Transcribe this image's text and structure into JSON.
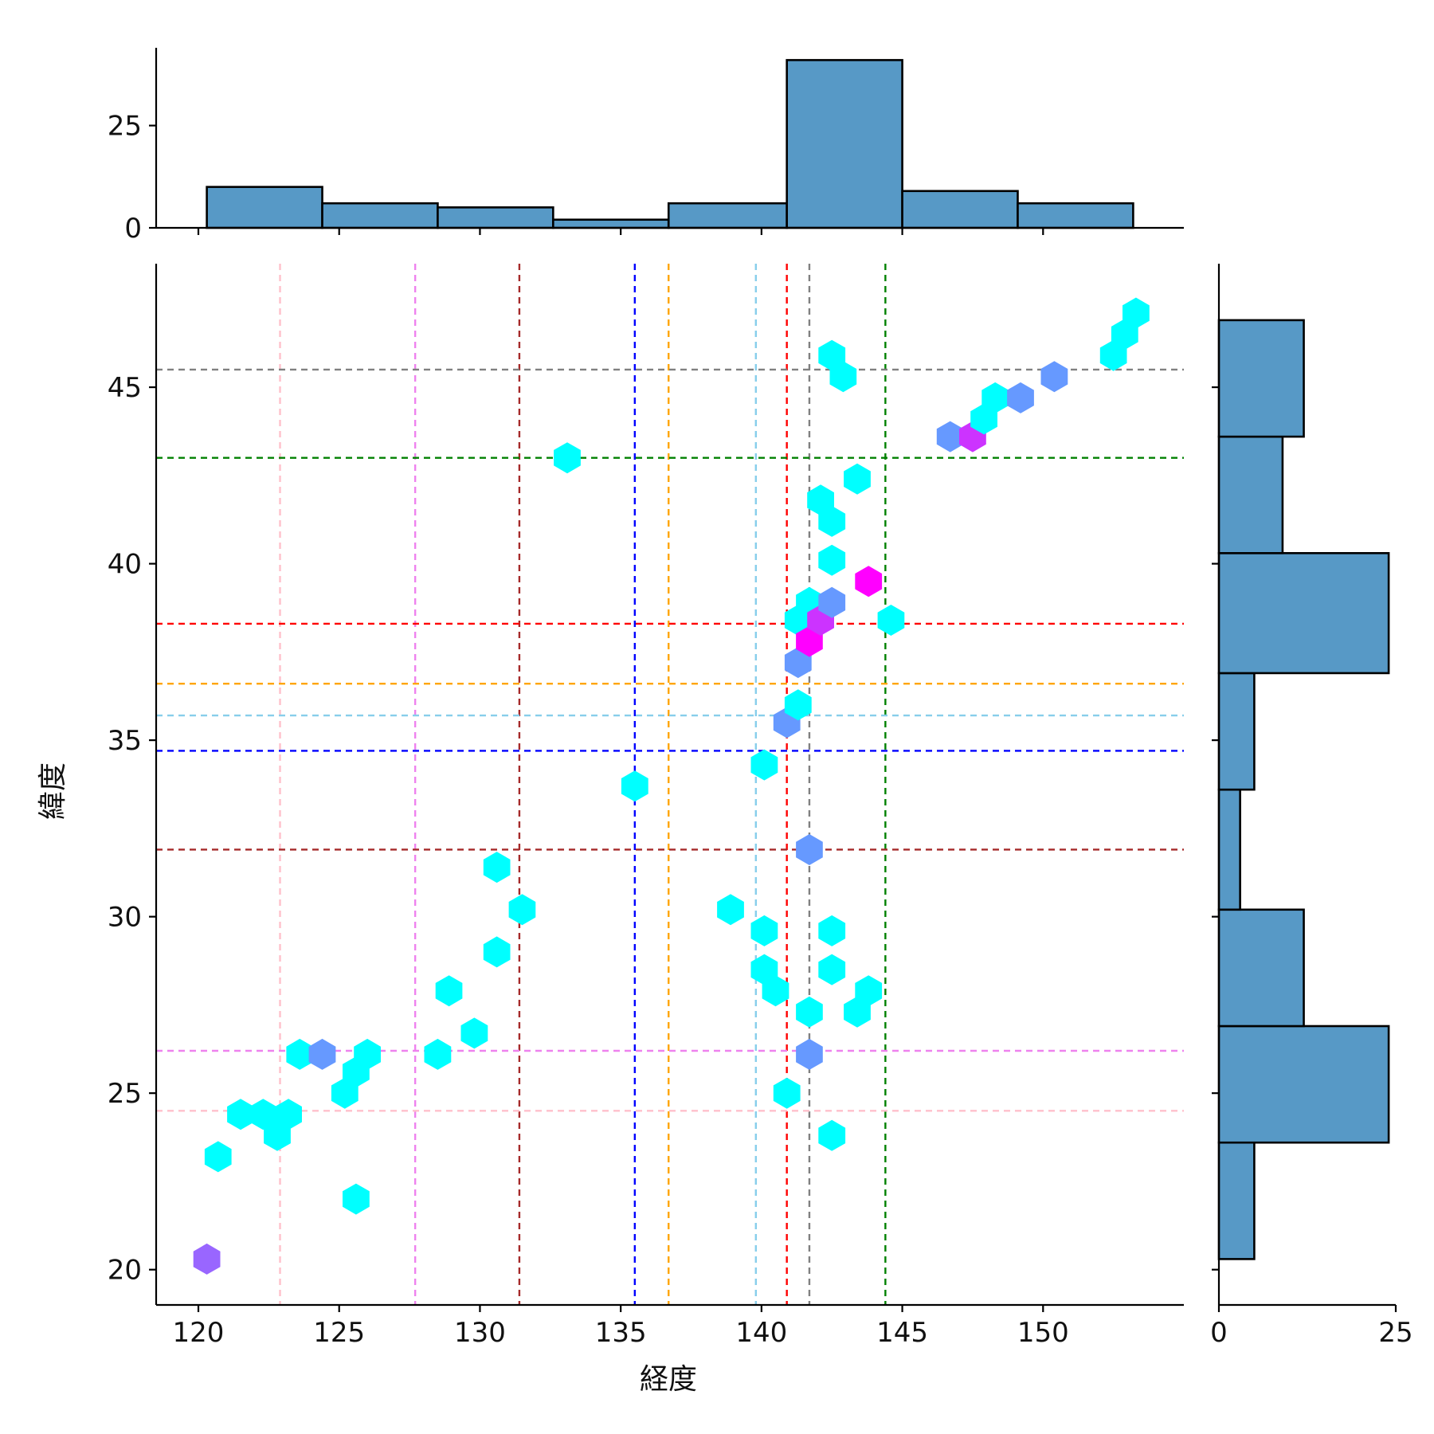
{
  "chart_data": {
    "type": "hexbin-joint",
    "xlabel": "経度",
    "ylabel": "緯度",
    "xlim": [
      118.5,
      155
    ],
    "ylim": [
      19,
      48.5
    ],
    "x_ticks": [
      "120",
      "125",
      "130",
      "135",
      "140",
      "145",
      "150"
    ],
    "y_ticks": [
      "20",
      "25",
      "30",
      "35",
      "40",
      "45"
    ],
    "grid": false,
    "hexbins": [
      {
        "x": 120.3,
        "y": 20.3,
        "color": "#9966ff"
      },
      {
        "x": 120.7,
        "y": 23.2,
        "color": "#00ffff"
      },
      {
        "x": 121.5,
        "y": 24.4,
        "color": "#00ffff"
      },
      {
        "x": 122.3,
        "y": 24.4,
        "color": "#00ffff"
      },
      {
        "x": 122.8,
        "y": 23.8,
        "color": "#00ffff"
      },
      {
        "x": 123.2,
        "y": 24.4,
        "color": "#00ffff"
      },
      {
        "x": 123.6,
        "y": 26.1,
        "color": "#00ffff"
      },
      {
        "x": 124.4,
        "y": 26.1,
        "color": "#6699ff"
      },
      {
        "x": 125.2,
        "y": 25.0,
        "color": "#00ffff"
      },
      {
        "x": 125.6,
        "y": 25.6,
        "color": "#00ffff"
      },
      {
        "x": 126.0,
        "y": 26.1,
        "color": "#00ffff"
      },
      {
        "x": 125.6,
        "y": 22.0,
        "color": "#00ffff"
      },
      {
        "x": 128.5,
        "y": 26.1,
        "color": "#00ffff"
      },
      {
        "x": 128.9,
        "y": 27.9,
        "color": "#00ffff"
      },
      {
        "x": 129.8,
        "y": 26.7,
        "color": "#00ffff"
      },
      {
        "x": 130.6,
        "y": 29.0,
        "color": "#00ffff"
      },
      {
        "x": 130.6,
        "y": 31.4,
        "color": "#00ffff"
      },
      {
        "x": 131.5,
        "y": 30.2,
        "color": "#00ffff"
      },
      {
        "x": 133.1,
        "y": 43.0,
        "color": "#00ffff"
      },
      {
        "x": 135.5,
        "y": 33.7,
        "color": "#00ffff"
      },
      {
        "x": 138.9,
        "y": 30.2,
        "color": "#00ffff"
      },
      {
        "x": 140.1,
        "y": 29.6,
        "color": "#00ffff"
      },
      {
        "x": 140.1,
        "y": 28.5,
        "color": "#00ffff"
      },
      {
        "x": 140.5,
        "y": 27.9,
        "color": "#00ffff"
      },
      {
        "x": 140.1,
        "y": 34.3,
        "color": "#00ffff"
      },
      {
        "x": 140.9,
        "y": 25.0,
        "color": "#00ffff"
      },
      {
        "x": 140.9,
        "y": 35.5,
        "color": "#6699ff"
      },
      {
        "x": 141.3,
        "y": 36.0,
        "color": "#00ffff"
      },
      {
        "x": 141.3,
        "y": 37.2,
        "color": "#6699ff"
      },
      {
        "x": 141.3,
        "y": 38.4,
        "color": "#00ffff"
      },
      {
        "x": 141.7,
        "y": 37.8,
        "color": "#ff00ff"
      },
      {
        "x": 141.7,
        "y": 38.9,
        "color": "#00ffff"
      },
      {
        "x": 142.1,
        "y": 38.4,
        "color": "#cc33ff"
      },
      {
        "x": 141.7,
        "y": 31.9,
        "color": "#6699ff"
      },
      {
        "x": 141.7,
        "y": 27.3,
        "color": "#00ffff"
      },
      {
        "x": 141.7,
        "y": 26.1,
        "color": "#6699ff"
      },
      {
        "x": 142.1,
        "y": 41.8,
        "color": "#00ffff"
      },
      {
        "x": 142.5,
        "y": 41.2,
        "color": "#00ffff"
      },
      {
        "x": 142.5,
        "y": 40.1,
        "color": "#00ffff"
      },
      {
        "x": 142.5,
        "y": 38.9,
        "color": "#6699ff"
      },
      {
        "x": 142.5,
        "y": 29.6,
        "color": "#00ffff"
      },
      {
        "x": 142.5,
        "y": 28.5,
        "color": "#00ffff"
      },
      {
        "x": 142.5,
        "y": 23.8,
        "color": "#00ffff"
      },
      {
        "x": 142.5,
        "y": 45.9,
        "color": "#00ffff"
      },
      {
        "x": 142.9,
        "y": 45.3,
        "color": "#00ffff"
      },
      {
        "x": 143.4,
        "y": 42.4,
        "color": "#00ffff"
      },
      {
        "x": 143.4,
        "y": 27.3,
        "color": "#00ffff"
      },
      {
        "x": 143.8,
        "y": 27.9,
        "color": "#00ffff"
      },
      {
        "x": 143.8,
        "y": 39.5,
        "color": "#ff00ff"
      },
      {
        "x": 144.6,
        "y": 38.4,
        "color": "#00ffff"
      },
      {
        "x": 146.7,
        "y": 43.6,
        "color": "#6699ff"
      },
      {
        "x": 147.5,
        "y": 43.6,
        "color": "#cc33ff"
      },
      {
        "x": 147.9,
        "y": 44.1,
        "color": "#00ffff"
      },
      {
        "x": 148.3,
        "y": 44.7,
        "color": "#00ffff"
      },
      {
        "x": 149.2,
        "y": 44.7,
        "color": "#6699ff"
      },
      {
        "x": 150.4,
        "y": 45.3,
        "color": "#6699ff"
      },
      {
        "x": 152.5,
        "y": 45.9,
        "color": "#00ffff"
      },
      {
        "x": 152.9,
        "y": 46.5,
        "color": "#00ffff"
      },
      {
        "x": 153.3,
        "y": 47.1,
        "color": "#00ffff"
      }
    ],
    "vertical_lines": [
      {
        "x": 122.9,
        "color": "#ffc0cb"
      },
      {
        "x": 127.7,
        "color": "#ee82ee"
      },
      {
        "x": 131.4,
        "color": "#a52a2a"
      },
      {
        "x": 135.5,
        "color": "#0000ff"
      },
      {
        "x": 136.7,
        "color": "#ffa500"
      },
      {
        "x": 139.8,
        "color": "#87ceeb"
      },
      {
        "x": 140.9,
        "color": "#ff0000"
      },
      {
        "x": 141.7,
        "color": "#808080"
      },
      {
        "x": 144.4,
        "color": "#008000"
      }
    ],
    "horizontal_lines": [
      {
        "y": 45.5,
        "color": "#808080"
      },
      {
        "y": 43.0,
        "color": "#008000"
      },
      {
        "y": 38.3,
        "color": "#ff0000"
      },
      {
        "y": 36.6,
        "color": "#ffa500"
      },
      {
        "y": 35.7,
        "color": "#87ceeb"
      },
      {
        "y": 34.7,
        "color": "#0000ff"
      },
      {
        "y": 31.9,
        "color": "#a52a2a"
      },
      {
        "y": 26.2,
        "color": "#ee82ee"
      },
      {
        "y": 24.5,
        "color": "#ffc0cb"
      }
    ],
    "top_histogram": {
      "bin_edges": [
        120.3,
        124.4,
        128.5,
        132.6,
        136.7,
        140.9,
        145.0,
        149.1,
        153.2
      ],
      "counts": [
        10,
        6,
        5,
        2,
        6,
        41,
        9,
        6
      ],
      "ylim": [
        0,
        44
      ],
      "y_ticks": [
        "0",
        "25"
      ]
    },
    "right_histogram": {
      "bin_edges": [
        20.3,
        23.6,
        26.9,
        30.2,
        33.6,
        36.9,
        40.3,
        43.6,
        46.9
      ],
      "counts": [
        5,
        24,
        12,
        3,
        5,
        24,
        9,
        12
      ],
      "xlim": [
        0,
        25
      ],
      "x_ticks": [
        "0",
        "25"
      ]
    },
    "bar_color": "#5799c6"
  }
}
